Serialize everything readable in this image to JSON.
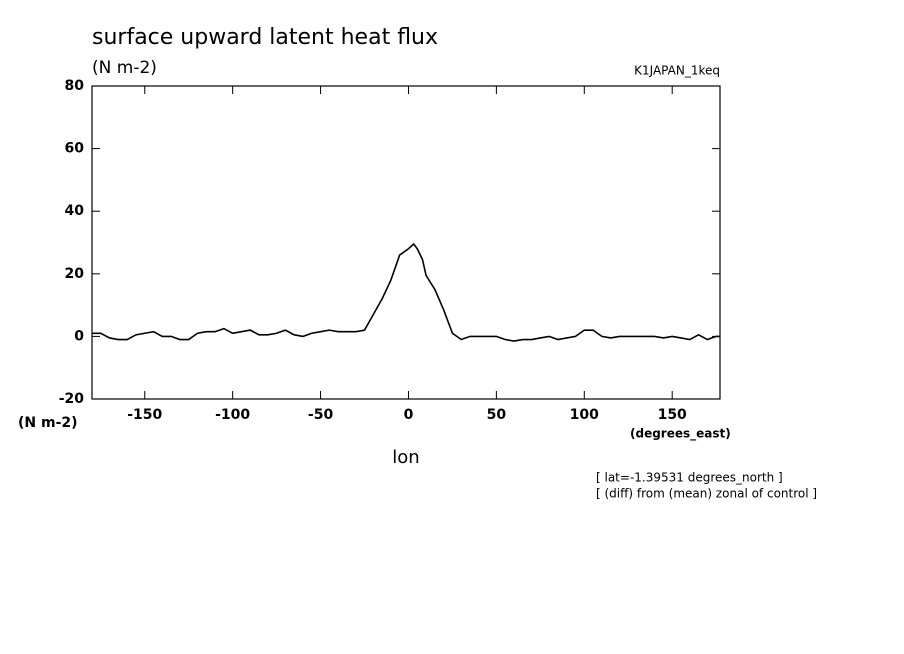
{
  "chart_data": {
    "type": "line",
    "title": "surface upward latent heat flux",
    "subtitle": "(N m-2)",
    "experiment": "K1JAPAN_1keq",
    "y_label": "(N m-2)",
    "x_units": "(degrees_east)",
    "x_label": "lon",
    "notes": [
      "[ lat=-1.39531 degrees_north ]",
      "[ (diff) from (mean) zonal of control ]"
    ],
    "x": [
      -180,
      -175,
      -170,
      -165,
      -160,
      -155,
      -150,
      -145,
      -140,
      -135,
      -130,
      -125,
      -120,
      -115,
      -110,
      -105,
      -100,
      -95,
      -90,
      -85,
      -80,
      -75,
      -70,
      -65,
      -60,
      -55,
      -50,
      -45,
      -40,
      -35,
      -30,
      -25,
      -20,
      -15,
      -10,
      -5,
      0,
      3,
      5,
      8,
      10,
      15,
      20,
      25,
      30,
      35,
      40,
      45,
      50,
      55,
      60,
      65,
      70,
      75,
      80,
      85,
      90,
      95,
      100,
      105,
      110,
      115,
      120,
      125,
      130,
      135,
      140,
      145,
      150,
      155,
      160,
      165,
      170,
      175,
      177.1875
    ],
    "series": [
      {
        "name": "latent heat flux",
        "color": "#000000",
        "values": [
          1,
          1,
          -0.5,
          -1,
          -1,
          0.5,
          1,
          1.5,
          0,
          0,
          -1,
          -1,
          1,
          1.5,
          1.5,
          2.5,
          1,
          1.5,
          2,
          0.5,
          0.5,
          1,
          2,
          0.5,
          0,
          1,
          1.5,
          2,
          1.5,
          1.5,
          1.5,
          2,
          7,
          12,
          18,
          26,
          28,
          29.5,
          28,
          24.5,
          19.5,
          15,
          8.5,
          1,
          -1,
          0,
          0,
          0,
          0,
          -1,
          -1.5,
          -1,
          -1,
          -0.5,
          0,
          -1,
          -0.5,
          0,
          2,
          2,
          0,
          -0.5,
          0,
          0,
          0,
          0,
          0,
          -0.5,
          0,
          -0.5,
          -1,
          0.5,
          -1,
          0,
          0
        ]
      }
    ],
    "xlim": [
      -180,
      177.1875
    ],
    "ylim": [
      -20,
      80
    ],
    "xticks": [
      -150,
      -100,
      -50,
      0,
      50,
      100,
      150
    ],
    "yticks": [
      -20,
      0,
      20,
      40,
      60,
      80
    ]
  }
}
